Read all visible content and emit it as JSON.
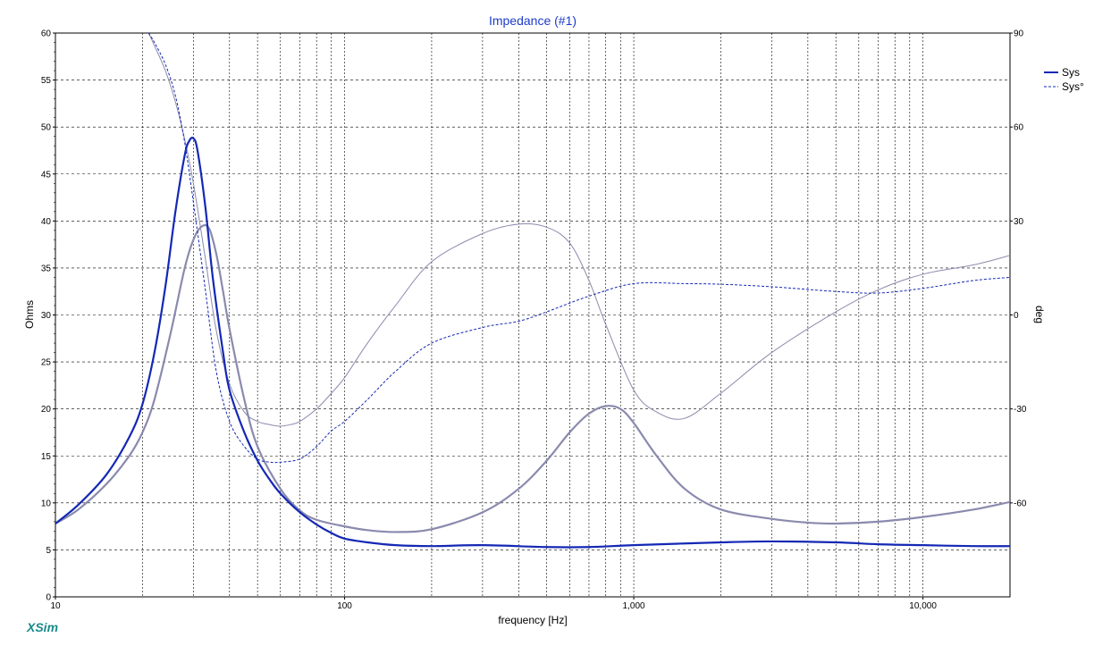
{
  "chart_data": {
    "type": "line",
    "title": "Impedance (#1)",
    "xlabel": "frequency [Hz]",
    "ylabel": "Ohms",
    "y2label": "deg",
    "xscale": "log",
    "xlim": [
      10,
      20000
    ],
    "ylim": [
      0,
      60
    ],
    "y2lim": [
      -90,
      90
    ],
    "x_ticks": [
      {
        "v": 10,
        "label": "10"
      },
      {
        "v": 100,
        "label": "100"
      },
      {
        "v": 1000,
        "label": "1,000"
      },
      {
        "v": 10000,
        "label": "10,000"
      }
    ],
    "y_ticks": [
      {
        "v": 0,
        "label": "0"
      },
      {
        "v": 5,
        "label": "5"
      },
      {
        "v": 10,
        "label": "10"
      },
      {
        "v": 15,
        "label": "15"
      },
      {
        "v": 20,
        "label": "20"
      },
      {
        "v": 25,
        "label": "25"
      },
      {
        "v": 30,
        "label": "30"
      },
      {
        "v": 35,
        "label": "35"
      },
      {
        "v": 40,
        "label": "40"
      },
      {
        "v": 45,
        "label": "45"
      },
      {
        "v": 50,
        "label": "50"
      },
      {
        "v": 55,
        "label": "55"
      },
      {
        "v": 60,
        "label": "60"
      }
    ],
    "y2_ticks": [
      {
        "v": 90,
        "label": "90"
      },
      {
        "v": 60,
        "label": "60"
      },
      {
        "v": 30,
        "label": "30"
      },
      {
        "v": 0,
        "label": "0"
      },
      {
        "v": -30,
        "label": "-30"
      },
      {
        "v": -60,
        "label": "-60"
      }
    ],
    "grid": true,
    "legend_position": "top-right",
    "legend": [
      {
        "label": "Sys",
        "style": "solid"
      },
      {
        "label": "Sys°",
        "style": "dashed"
      }
    ],
    "series": [
      {
        "name": "Sys",
        "axis": "left",
        "style": "solid",
        "color": "#1428b4",
        "width": 2.2,
        "x": [
          10,
          12,
          15,
          18,
          20,
          22,
          24,
          26,
          28,
          29,
          30,
          31,
          33,
          35,
          38,
          40,
          45,
          50,
          55,
          60,
          70,
          80,
          90,
          100,
          120,
          150,
          200,
          300,
          500,
          700,
          1000,
          2000,
          3000,
          5000,
          7000,
          10000,
          15000,
          20000
        ],
        "y": [
          7.8,
          9.8,
          13.0,
          17.0,
          20.5,
          26.0,
          33.0,
          41.0,
          47.0,
          48.5,
          48.8,
          47.5,
          41.5,
          34.0,
          26.0,
          22.0,
          17.5,
          14.5,
          12.5,
          11.0,
          9.0,
          7.7,
          6.8,
          6.2,
          5.8,
          5.5,
          5.4,
          5.5,
          5.3,
          5.3,
          5.5,
          5.8,
          5.9,
          5.8,
          5.6,
          5.5,
          5.4,
          5.4
        ]
      },
      {
        "name": "Sys°",
        "axis": "right",
        "style": "dashed",
        "color": "#1428b4",
        "width": 1,
        "x": [
          21,
          22,
          24,
          26,
          28,
          30,
          33,
          36,
          40,
          45,
          50,
          55,
          60,
          70,
          80,
          90,
          100,
          120,
          150,
          200,
          300,
          400,
          500,
          700,
          1000,
          1500,
          2000,
          3000,
          5000,
          7000,
          10000,
          15000,
          20000
        ],
        "y": [
          90,
          87,
          80,
          70,
          55,
          36,
          8,
          -18,
          -34,
          -42,
          -46,
          -47,
          -47,
          -46,
          -42,
          -37,
          -34,
          -27,
          -18,
          -9,
          -4,
          -2,
          1,
          6,
          10,
          10,
          9.8,
          9,
          7.5,
          7,
          8.5,
          11,
          12
        ]
      },
      {
        "name": "",
        "axis": "left",
        "style": "solid",
        "color": "#8a8aae",
        "width": 2.2,
        "x": [
          10,
          12,
          15,
          18,
          20,
          22,
          25,
          28,
          30,
          32,
          34,
          36,
          38,
          40,
          45,
          50,
          60,
          70,
          80,
          100,
          120,
          150,
          200,
          300,
          400,
          500,
          600,
          700,
          800,
          900,
          1000,
          1200,
          1500,
          2000,
          3000,
          4000,
          5000,
          7000,
          10000,
          15000,
          20000
        ],
        "y": [
          7.8,
          9.3,
          12.0,
          15.0,
          17.5,
          21.0,
          28.0,
          35.0,
          38.0,
          39.4,
          39.2,
          36.5,
          32.5,
          28.5,
          21.0,
          16.0,
          11.5,
          9.2,
          8.2,
          7.5,
          7.1,
          6.9,
          7.2,
          9.0,
          11.5,
          14.5,
          17.5,
          19.5,
          20.3,
          20.0,
          18.5,
          15.0,
          11.5,
          9.3,
          8.3,
          7.9,
          7.8,
          8.0,
          8.5,
          9.3,
          10.1
        ]
      },
      {
        "name": "",
        "axis": "right",
        "style": "solid",
        "color": "#8a8aae",
        "width": 1,
        "x": [
          21,
          22,
          24,
          26,
          28,
          30,
          33,
          36,
          40,
          45,
          50,
          55,
          60,
          65,
          70,
          80,
          90,
          100,
          120,
          150,
          200,
          300,
          400,
          500,
          600,
          700,
          800,
          1000,
          1200,
          1500,
          2000,
          3000,
          5000,
          7000,
          10000,
          15000,
          20000
        ],
        "y": [
          90,
          86,
          78,
          68,
          56,
          42,
          18,
          -5,
          -22,
          -31,
          -34,
          -35,
          -35.5,
          -35,
          -34,
          -30,
          -25,
          -20,
          -9,
          3,
          17,
          26,
          29,
          28,
          23,
          11,
          -3,
          -24,
          -31,
          -33,
          -25,
          -12,
          1,
          8,
          13,
          16,
          19
        ]
      }
    ]
  },
  "branding": {
    "text": "XSim"
  }
}
